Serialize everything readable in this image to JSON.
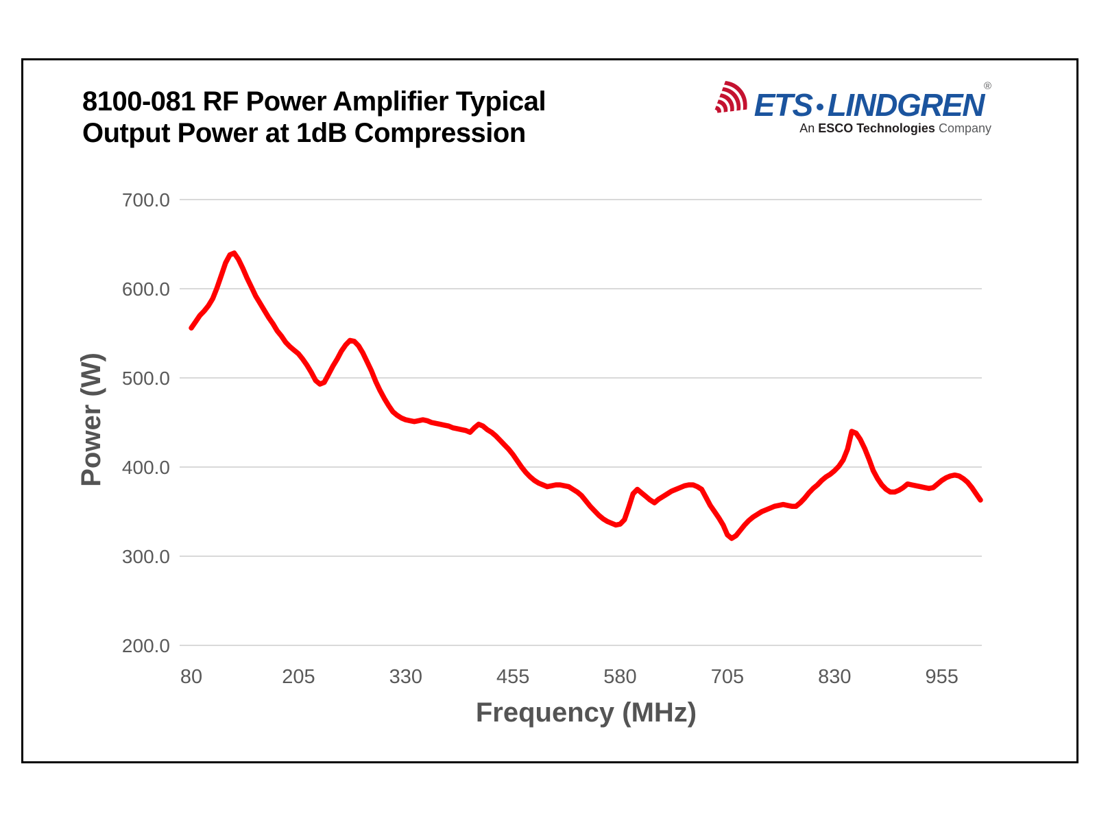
{
  "page": {
    "background": "#ffffff",
    "frame_border_color": "#000000"
  },
  "header": {
    "title_line1": "8100-081 RF Power Amplifier Typical",
    "title_line2": "Output Power at 1dB Compression"
  },
  "logo": {
    "ets": "ETS",
    "separator": "·",
    "lindgren": "LINDGREN",
    "registered": "®",
    "tagline_prefix": "An ",
    "tagline_bold": "ESCO Technologies",
    "tagline_suffix": " Company",
    "blue": "#1b549e",
    "red": "#c41230",
    "tagline_color": "#231f20",
    "company_color": "#58595b"
  },
  "chart_data": {
    "type": "line",
    "title": "8100-081 RF Power Amplifier Typical Output Power at 1dB Compression",
    "xlabel": "Frequency (MHz)",
    "ylabel": "Power (W)",
    "xlim": [
      80,
      1000
    ],
    "ylim": [
      200,
      700
    ],
    "x_ticks": [
      80,
      205,
      330,
      455,
      580,
      705,
      830,
      955
    ],
    "y_tick_labels": [
      "700.0",
      "600.0",
      "500.0",
      "400.0",
      "300.0",
      "200.0"
    ],
    "grid": "horizontal-only",
    "gridline_color": "#d9d9d9",
    "tick_label_color": "#595959",
    "axis_title_color": "#545454",
    "line_color": "#ff0000",
    "line_width": 7.5,
    "legend": "none",
    "series": [
      {
        "x_start": 80,
        "x_step": 5,
        "values": [
          556,
          563,
          570,
          575,
          581,
          589,
          601,
          615,
          629,
          638,
          640,
          633,
          623,
          612,
          602,
          592,
          584,
          576,
          568,
          561,
          553,
          547,
          540,
          535,
          531,
          527,
          521,
          514,
          506,
          497,
          493,
          495,
          504,
          513,
          521,
          530,
          537,
          542,
          541,
          536,
          528,
          518,
          508,
          496,
          486,
          477,
          469,
          462,
          458,
          455,
          453,
          452,
          451,
          452,
          453,
          452,
          450,
          449,
          448,
          447,
          446,
          444,
          443,
          442,
          441,
          439,
          444,
          448,
          446,
          442,
          439,
          435,
          430,
          425,
          420,
          414,
          407,
          400,
          394,
          389,
          385,
          382,
          380,
          378,
          379,
          380,
          380,
          379,
          378,
          375,
          372,
          368,
          362,
          356,
          351,
          346,
          342,
          339,
          337,
          335,
          336,
          341,
          355,
          370,
          375,
          371,
          367,
          363,
          360,
          364,
          367,
          370,
          373,
          375,
          377,
          379,
          380,
          380,
          378,
          375,
          366,
          357,
          350,
          343,
          335,
          324,
          320,
          323,
          329,
          335,
          340,
          344,
          347,
          350,
          352,
          354,
          356,
          357,
          358,
          357,
          356,
          356,
          360,
          365,
          371,
          376,
          380,
          385,
          389,
          392,
          396,
          401,
          408,
          420,
          440,
          438,
          431,
          421,
          409,
          396,
          387,
          380,
          375,
          372,
          372,
          374,
          377,
          381,
          380,
          379,
          378,
          377,
          376,
          377,
          381,
          385,
          388,
          390,
          391,
          390,
          387,
          383,
          377,
          370,
          363
        ]
      }
    ]
  }
}
